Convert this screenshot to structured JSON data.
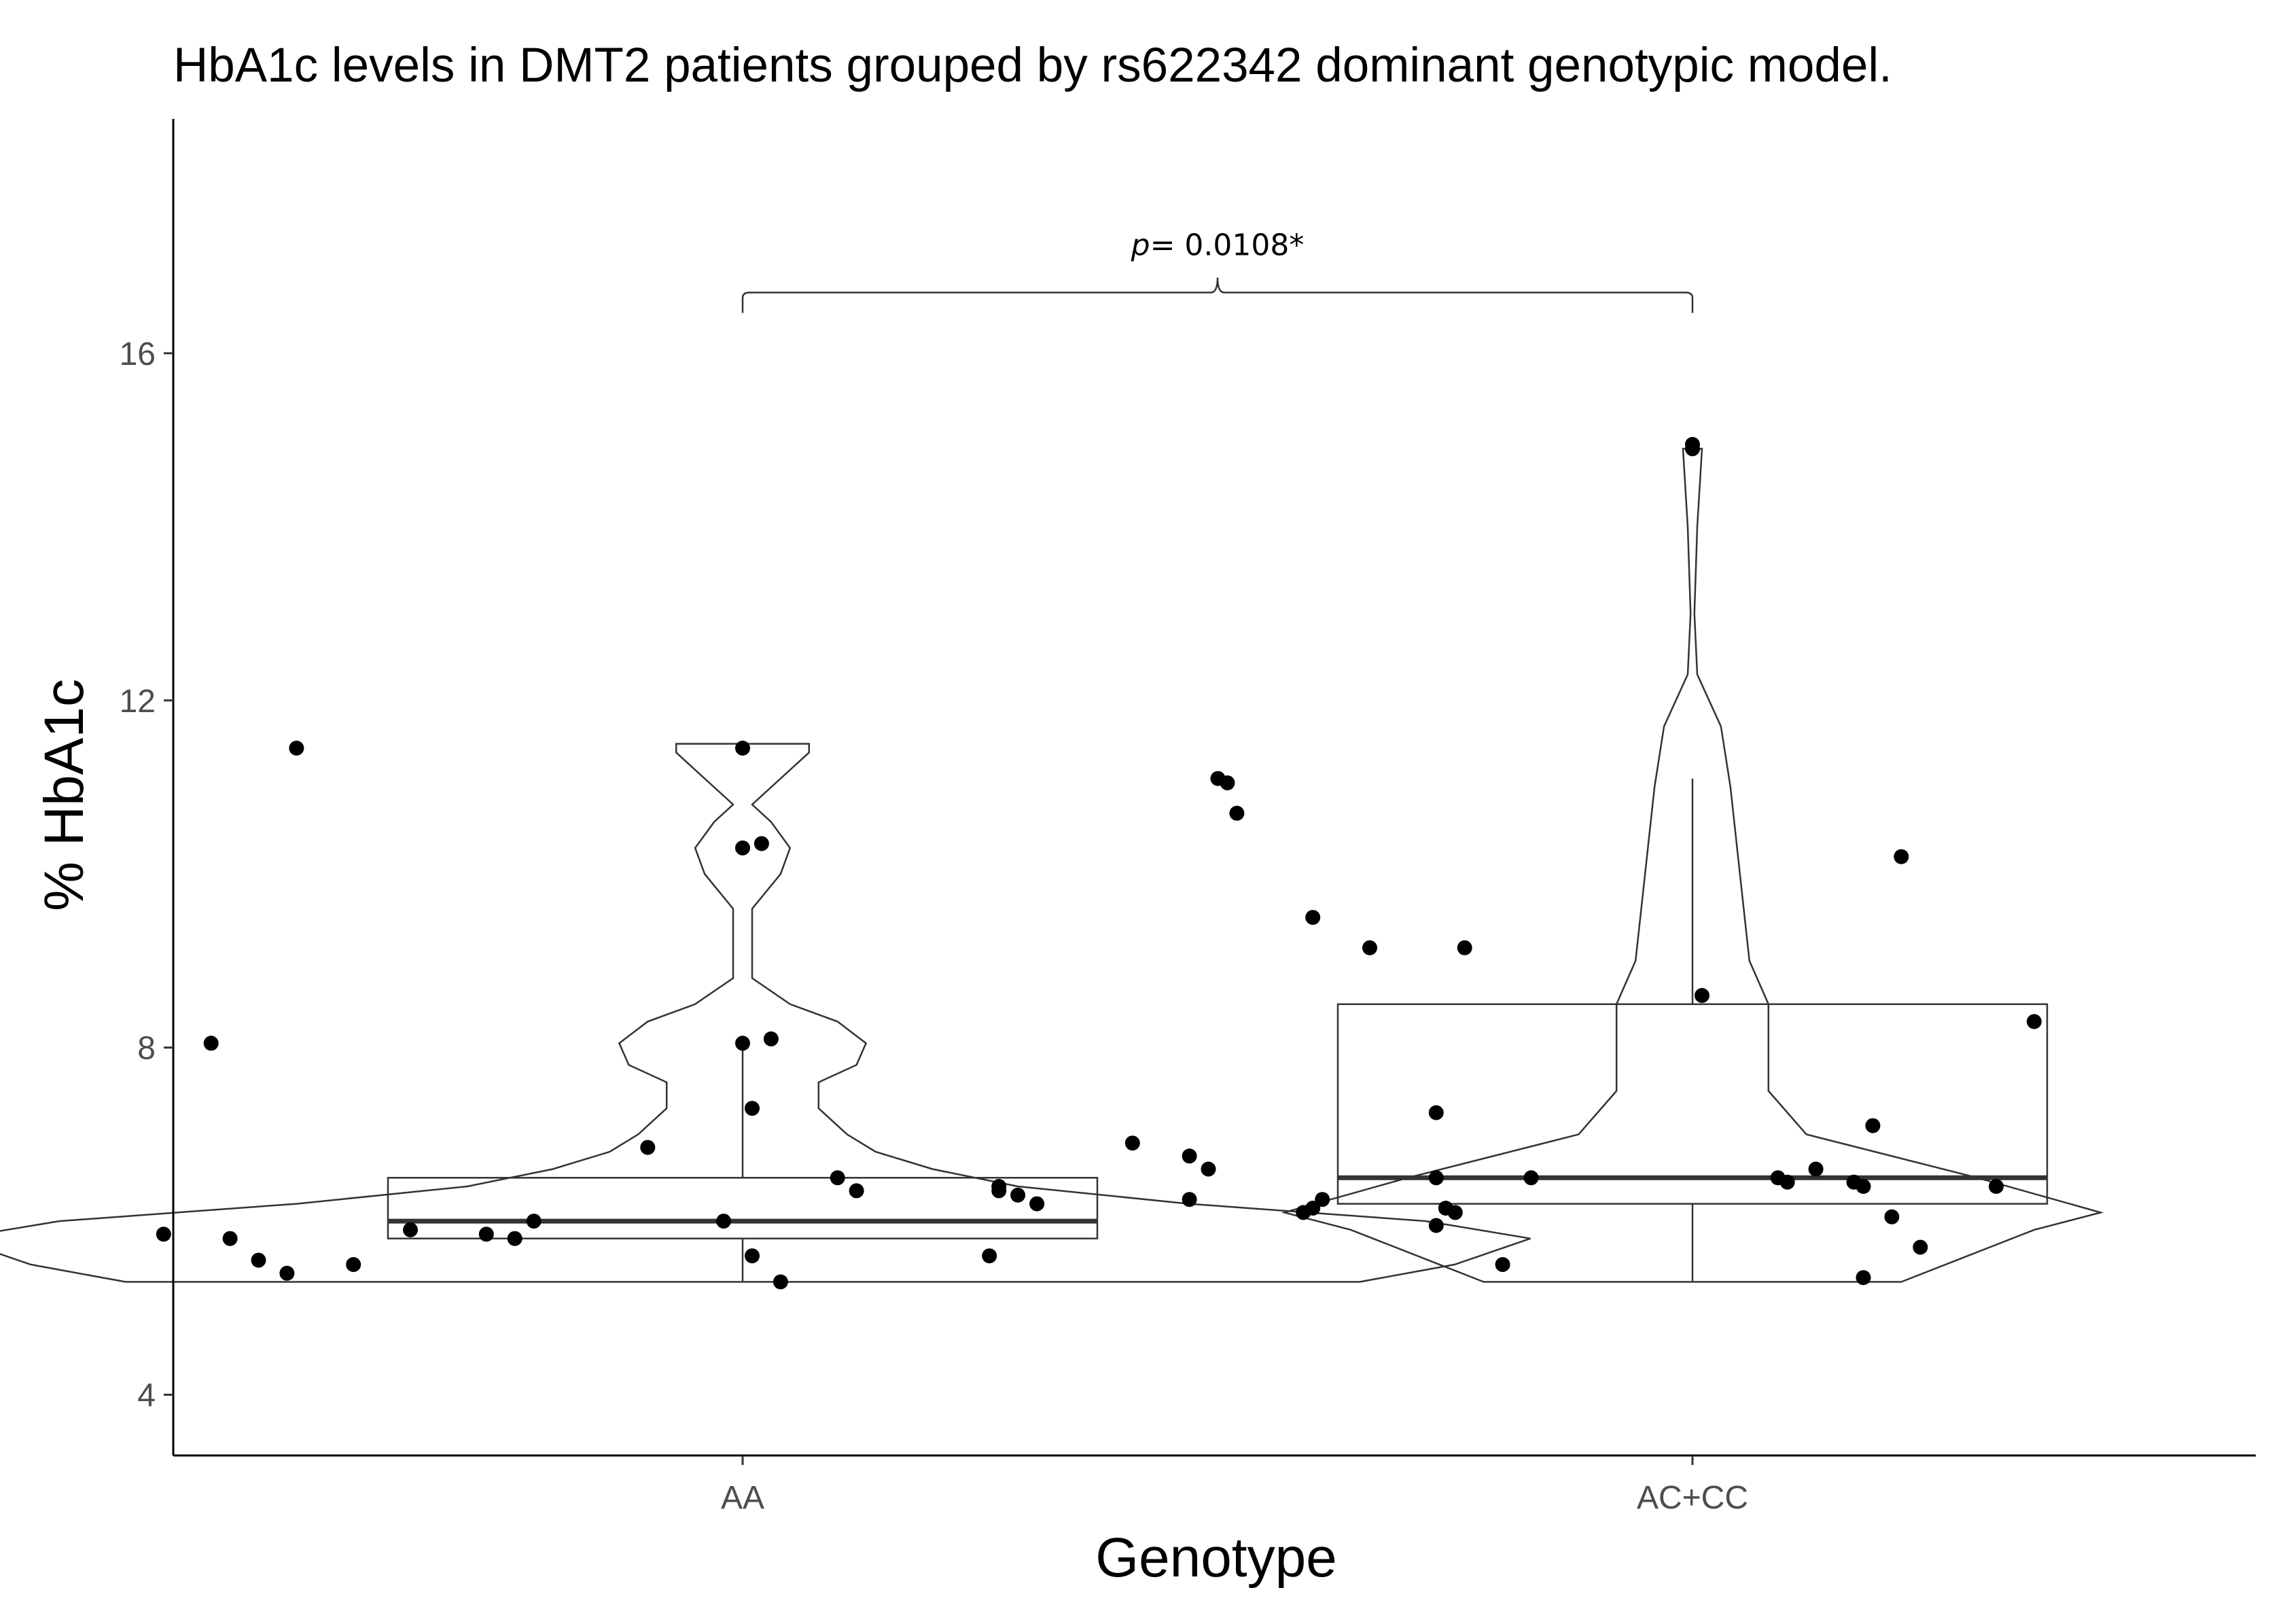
{
  "chart_data": {
    "type": "violin-box-jitter",
    "title": "HbA1c levels in DMT2 patients grouped by rs622342 dominant genotypic model.",
    "xlabel": "Genotype",
    "ylabel": "% HbA1c",
    "categories": [
      "AA",
      "AC+CC"
    ],
    "y_ticks": [
      4,
      8,
      12,
      16
    ],
    "ylim": [
      3.3,
      18.7
    ],
    "grid": false,
    "legend": "none",
    "annotation": {
      "prefix": "p",
      "text": "= 0.0108*",
      "between": [
        "AA",
        "AC+CC"
      ],
      "y": 16.7
    },
    "boxes": [
      {
        "group": "AA",
        "q1": 5.8,
        "median": 6.0,
        "q3": 6.5,
        "whisker_low": 5.3,
        "whisker_high": 8.0
      },
      {
        "group": "AC+CC",
        "q1": 6.2,
        "median": 6.5,
        "q3": 8.5,
        "whisker_low": 5.3,
        "whisker_high": 11.1
      }
    ],
    "violins": [
      {
        "group": "AA",
        "profile": [
          [
            5.3,
            0.65
          ],
          [
            5.5,
            0.75
          ],
          [
            5.8,
            0.83
          ],
          [
            6.0,
            0.72
          ],
          [
            6.2,
            0.47
          ],
          [
            6.4,
            0.29
          ],
          [
            6.6,
            0.2
          ],
          [
            6.8,
            0.14
          ],
          [
            7.0,
            0.11
          ],
          [
            7.3,
            0.08
          ],
          [
            7.6,
            0.08
          ],
          [
            7.8,
            0.12
          ],
          [
            8.05,
            0.13
          ],
          [
            8.3,
            0.1
          ],
          [
            8.5,
            0.05
          ],
          [
            8.8,
            0.01
          ],
          [
            9.2,
            0.01
          ],
          [
            9.6,
            0.01
          ],
          [
            10.0,
            0.04
          ],
          [
            10.3,
            0.05
          ],
          [
            10.6,
            0.03
          ],
          [
            10.8,
            0.01
          ],
          [
            11.0,
            0.03
          ],
          [
            11.2,
            0.05
          ],
          [
            11.4,
            0.07
          ],
          [
            11.5,
            0.07
          ]
        ]
      },
      {
        "group": "AC+CC",
        "profile": [
          [
            5.3,
            0.22
          ],
          [
            5.6,
            0.29
          ],
          [
            5.9,
            0.36
          ],
          [
            6.1,
            0.43
          ],
          [
            6.5,
            0.3
          ],
          [
            7.0,
            0.12
          ],
          [
            7.5,
            0.08
          ],
          [
            8.0,
            0.08
          ],
          [
            8.5,
            0.08
          ],
          [
            9.0,
            0.06
          ],
          [
            10.0,
            0.05
          ],
          [
            11.0,
            0.04
          ],
          [
            11.7,
            0.03
          ],
          [
            12.3,
            0.005
          ],
          [
            13.0,
            0.002
          ],
          [
            14.0,
            0.005
          ],
          [
            14.9,
            0.01
          ]
        ]
      }
    ],
    "points": [
      {
        "group": "AA",
        "jitter": [
          [
            -0.61,
            5.85
          ],
          [
            -0.56,
            8.05
          ],
          [
            -0.54,
            5.8
          ],
          [
            -0.51,
            5.55
          ],
          [
            -0.47,
            11.45
          ],
          [
            -0.48,
            5.4
          ],
          [
            -0.41,
            5.5
          ],
          [
            -0.35,
            5.9
          ],
          [
            -0.27,
            5.85
          ],
          [
            -0.24,
            5.8
          ],
          [
            -0.22,
            6.0
          ],
          [
            -0.1,
            6.85
          ],
          [
            -0.02,
            6.0
          ],
          [
            0.0,
            11.45
          ],
          [
            0.0,
            10.3
          ],
          [
            0.0,
            8.05
          ],
          [
            0.01,
            7.3
          ],
          [
            0.01,
            5.6
          ],
          [
            0.02,
            10.35
          ],
          [
            0.03,
            8.1
          ],
          [
            0.04,
            5.3
          ],
          [
            0.1,
            6.5
          ],
          [
            0.12,
            6.35
          ],
          [
            0.26,
            5.6
          ],
          [
            0.27,
            6.4
          ],
          [
            0.27,
            6.35
          ],
          [
            0.29,
            6.3
          ],
          [
            0.31,
            6.2
          ]
        ]
      },
      {
        "group": "AC+CC",
        "jitter": [
          [
            -0.59,
            6.9
          ],
          [
            -0.53,
            6.75
          ],
          [
            -0.53,
            6.25
          ],
          [
            -0.51,
            6.6
          ],
          [
            -0.5,
            11.1
          ],
          [
            -0.49,
            11.05
          ],
          [
            -0.48,
            10.7
          ],
          [
            -0.41,
            6.1
          ],
          [
            -0.4,
            6.15
          ],
          [
            -0.4,
            9.5
          ],
          [
            -0.39,
            6.25
          ],
          [
            -0.34,
            9.15
          ],
          [
            -0.27,
            7.25
          ],
          [
            -0.27,
            6.5
          ],
          [
            -0.27,
            5.95
          ],
          [
            -0.26,
            6.15
          ],
          [
            -0.25,
            6.1
          ],
          [
            -0.24,
            9.15
          ],
          [
            -0.2,
            5.5
          ],
          [
            -0.17,
            6.5
          ],
          [
            0.0,
            14.9
          ],
          [
            0.0,
            14.95
          ],
          [
            0.01,
            8.6
          ],
          [
            0.09,
            6.5
          ],
          [
            0.1,
            6.45
          ],
          [
            0.13,
            6.6
          ],
          [
            0.17,
            6.45
          ],
          [
            0.18,
            5.35
          ],
          [
            0.18,
            6.4
          ],
          [
            0.19,
            7.1
          ],
          [
            0.21,
            6.05
          ],
          [
            0.22,
            10.2
          ],
          [
            0.24,
            5.7
          ],
          [
            0.32,
            6.4
          ],
          [
            0.36,
            8.3
          ]
        ]
      }
    ]
  }
}
